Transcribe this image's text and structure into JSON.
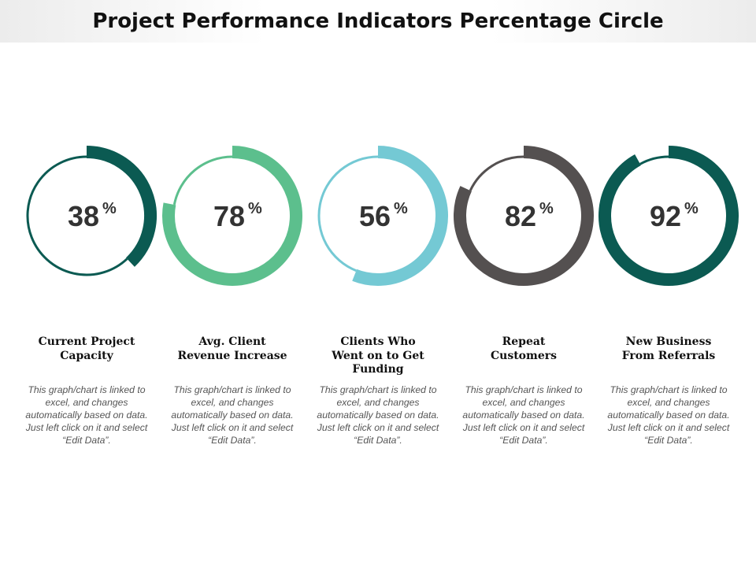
{
  "title": "Project Performance Indicators Percentage Circle",
  "chart_data": {
    "type": "donut-progress",
    "title": "Project Performance Indicators Percentage Circle",
    "categories": [
      "Current Project Capacity",
      "Avg. Client Revenue Increase",
      "Clients Who Went on to Get Funding",
      "Repeat Customers",
      "New Business From Referrals"
    ],
    "values": [
      38,
      78,
      56,
      82,
      92
    ],
    "unit": "%"
  },
  "kpis": [
    {
      "value": "38",
      "unit": "%",
      "label": "Current Project Capacity",
      "label_lines": [
        "Current Project",
        "Capacity"
      ],
      "description_lines": [
        "This graph/chart is linked to",
        "excel, and changes",
        "automatically based on data.",
        "Just left click on it and select",
        "“Edit Data”."
      ],
      "color": "#0b5a52"
    },
    {
      "value": "78",
      "unit": "%",
      "label": "Avg. Client Revenue Increase",
      "label_lines": [
        "Avg. Client",
        "Revenue Increase"
      ],
      "description_lines": [
        "This graph/chart is linked to",
        "excel, and changes",
        "automatically based on data.",
        "Just left click on it and select",
        "“Edit Data”."
      ],
      "color": "#5cbf8d"
    },
    {
      "value": "56",
      "unit": "%",
      "label": "Clients Who Went on to Get Funding",
      "label_lines": [
        "Clients Who",
        "Went on to Get",
        "Funding"
      ],
      "description_lines": [
        "This graph/chart is linked to",
        "excel, and changes",
        "automatically based on data.",
        "Just left click on it and select",
        "“Edit Data”."
      ],
      "color": "#74c9d4"
    },
    {
      "value": "82",
      "unit": "%",
      "label": "Repeat Customers",
      "label_lines": [
        "Repeat",
        "Customers"
      ],
      "description_lines": [
        "This graph/chart is linked to",
        "excel, and changes",
        "automatically based on data.",
        "Just left click on it and select",
        "“Edit Data”."
      ],
      "color": "#545050"
    },
    {
      "value": "92",
      "unit": "%",
      "label": "New Business From Referrals",
      "label_lines": [
        "New Business",
        "From Referrals"
      ],
      "description_lines": [
        "This graph/chart is linked to",
        "excel, and changes",
        "automatically based on data.",
        "Just left click on it and select",
        "“Edit Data”."
      ],
      "color": "#0b5a52"
    }
  ]
}
